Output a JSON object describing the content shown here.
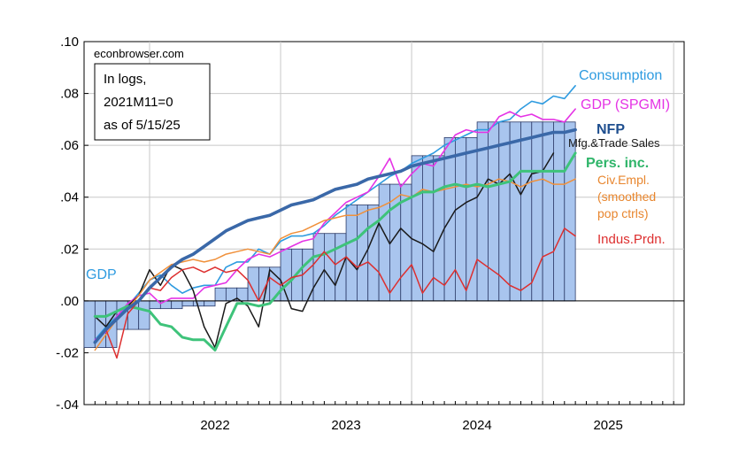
{
  "chart_data": {
    "type": "line",
    "source_credit": "econbrowser.com",
    "note_lines": [
      "In logs,",
      "2021M11=0",
      "as of 5/15/25"
    ],
    "x_tick_labels": [
      "2022",
      "2023",
      "2024",
      "2025"
    ],
    "x_range": [
      2021.5,
      2026.08
    ],
    "ylim": [
      -0.04,
      0.1
    ],
    "y_ticks": [
      -0.04,
      -0.02,
      0.0,
      0.02,
      0.04,
      0.06,
      0.08,
      0.1
    ],
    "y_tick_labels": [
      "-.04",
      "-.02",
      ".00",
      ".02",
      ".04",
      ".06",
      ".08",
      ".10"
    ],
    "grid": true,
    "bars": {
      "name": "GDP",
      "color": "#a9c5ee",
      "edge_color": "#2b3a67",
      "x": [
        2021.625,
        2021.875,
        2022.125,
        2022.375,
        2022.625,
        2022.875,
        2023.125,
        2023.375,
        2023.625,
        2023.875,
        2024.125,
        2024.375,
        2024.625,
        2024.875,
        2025.125
      ],
      "values": [
        -0.018,
        -0.011,
        -0.003,
        -0.002,
        0.005,
        0.013,
        0.02,
        0.026,
        0.037,
        0.045,
        0.056,
        0.063,
        0.069,
        0.069,
        0.069
      ]
    },
    "series": [
      {
        "name": "Consumption",
        "color": "#2e9be0",
        "width": 1.6,
        "x": [
          2021.583,
          2021.667,
          2021.75,
          2021.833,
          2021.917,
          2022.0,
          2022.083,
          2022.167,
          2022.25,
          2022.333,
          2022.417,
          2022.5,
          2022.583,
          2022.667,
          2022.75,
          2022.833,
          2022.917,
          2023.0,
          2023.083,
          2023.167,
          2023.25,
          2023.333,
          2023.417,
          2023.5,
          2023.583,
          2023.667,
          2023.75,
          2023.833,
          2023.917,
          2024.0,
          2024.083,
          2024.167,
          2024.25,
          2024.333,
          2024.417,
          2024.5,
          2024.583,
          2024.667,
          2024.75,
          2024.833,
          2024.917,
          2025.0,
          2025.083,
          2025.167,
          2025.25
        ],
        "values": [
          -0.015,
          -0.01,
          -0.006,
          -0.002,
          0.003,
          0.008,
          0.01,
          0.006,
          0.003,
          0.005,
          0.006,
          0.006,
          0.013,
          0.015,
          0.015,
          0.02,
          0.018,
          0.023,
          0.025,
          0.025,
          0.026,
          0.029,
          0.033,
          0.036,
          0.039,
          0.042,
          0.045,
          0.048,
          0.05,
          0.053,
          0.055,
          0.057,
          0.06,
          0.062,
          0.064,
          0.066,
          0.066,
          0.069,
          0.07,
          0.074,
          0.077,
          0.076,
          0.079,
          0.078,
          0.083
        ]
      },
      {
        "name": "GDP (SPGMI)",
        "color": "#e533e5",
        "width": 1.6,
        "x": [
          2021.583,
          2021.667,
          2021.75,
          2021.833,
          2021.917,
          2022.0,
          2022.083,
          2022.167,
          2022.25,
          2022.333,
          2022.417,
          2022.5,
          2022.583,
          2022.667,
          2022.75,
          2022.833,
          2022.917,
          2023.0,
          2023.083,
          2023.167,
          2023.25,
          2023.333,
          2023.417,
          2023.5,
          2023.583,
          2023.667,
          2023.75,
          2023.833,
          2023.917,
          2024.0,
          2024.083,
          2024.167,
          2024.25,
          2024.333,
          2024.417,
          2024.5,
          2024.583,
          2024.667,
          2024.75,
          2024.833,
          2024.917,
          2025.0,
          2025.083,
          2025.167,
          2025.25
        ],
        "values": [
          -0.015,
          -0.012,
          -0.006,
          -0.001,
          0.002,
          0.003,
          -0.001,
          0.001,
          0.001,
          0.001,
          0.005,
          0.006,
          0.007,
          0.012,
          0.016,
          0.018,
          0.017,
          0.019,
          0.021,
          0.023,
          0.024,
          0.03,
          0.034,
          0.038,
          0.04,
          0.042,
          0.048,
          0.055,
          0.044,
          0.049,
          0.053,
          0.052,
          0.058,
          0.064,
          0.066,
          0.065,
          0.065,
          0.071,
          0.073,
          0.071,
          0.072,
          0.07,
          0.07,
          0.069,
          0.074
        ]
      },
      {
        "name": "Mfg.&Trade Sales",
        "color": "#1a1a1a",
        "width": 1.5,
        "x": [
          2021.583,
          2021.667,
          2021.75,
          2021.833,
          2021.917,
          2022.0,
          2022.083,
          2022.167,
          2022.25,
          2022.333,
          2022.417,
          2022.5,
          2022.583,
          2022.667,
          2022.75,
          2022.833,
          2022.917,
          2023.0,
          2023.083,
          2023.167,
          2023.25,
          2023.333,
          2023.417,
          2023.5,
          2023.583,
          2023.667,
          2023.75,
          2023.833,
          2023.917,
          2024.0,
          2024.083,
          2024.167,
          2024.25,
          2024.333,
          2024.417,
          2024.5,
          2024.583,
          2024.667,
          2024.75,
          2024.833,
          2024.917,
          2025.0,
          2025.083
        ],
        "values": [
          -0.006,
          -0.01,
          -0.004,
          -0.002,
          0.002,
          0.012,
          0.006,
          0.014,
          0.012,
          0.004,
          -0.01,
          -0.018,
          -0.001,
          0.001,
          -0.002,
          -0.01,
          0.012,
          0.008,
          -0.003,
          -0.004,
          0.005,
          0.012,
          0.006,
          0.017,
          0.012,
          0.02,
          0.03,
          0.022,
          0.028,
          0.024,
          0.022,
          0.019,
          0.028,
          0.035,
          0.038,
          0.04,
          0.047,
          0.045,
          0.049,
          0.041,
          0.049,
          0.05,
          0.057
        ]
      },
      {
        "name": "Civ.Empl. (smoothed pop ctrls)",
        "color": "#f0903a",
        "width": 1.5,
        "x": [
          2021.583,
          2021.667,
          2021.75,
          2021.833,
          2021.917,
          2022.0,
          2022.083,
          2022.167,
          2022.25,
          2022.333,
          2022.417,
          2022.5,
          2022.583,
          2022.667,
          2022.75,
          2022.833,
          2022.917,
          2023.0,
          2023.083,
          2023.167,
          2023.25,
          2023.333,
          2023.417,
          2023.5,
          2023.583,
          2023.667,
          2023.75,
          2023.833,
          2023.917,
          2024.0,
          2024.083,
          2024.167,
          2024.25,
          2024.333,
          2024.417,
          2024.5,
          2024.583,
          2024.667,
          2024.75,
          2024.833,
          2024.917,
          2025.0,
          2025.083,
          2025.167,
          2025.25
        ],
        "values": [
          -0.019,
          -0.013,
          -0.007,
          -0.003,
          0.002,
          0.008,
          0.011,
          0.014,
          0.015,
          0.016,
          0.015,
          0.016,
          0.018,
          0.019,
          0.02,
          0.019,
          0.018,
          0.024,
          0.026,
          0.027,
          0.029,
          0.031,
          0.032,
          0.033,
          0.033,
          0.035,
          0.036,
          0.038,
          0.041,
          0.04,
          0.043,
          0.042,
          0.043,
          0.044,
          0.045,
          0.044,
          0.045,
          0.047,
          0.046,
          0.044,
          0.046,
          0.047,
          0.045,
          0.045,
          0.047
        ]
      },
      {
        "name": "Pers. inc.",
        "color": "#3ec37a",
        "width": 3.0,
        "x": [
          2021.583,
          2021.667,
          2021.75,
          2021.833,
          2021.917,
          2022.0,
          2022.083,
          2022.167,
          2022.25,
          2022.333,
          2022.417,
          2022.5,
          2022.583,
          2022.667,
          2022.75,
          2022.833,
          2022.917,
          2023.0,
          2023.083,
          2023.167,
          2023.25,
          2023.333,
          2023.417,
          2023.5,
          2023.583,
          2023.667,
          2023.75,
          2023.833,
          2023.917,
          2024.0,
          2024.083,
          2024.167,
          2024.25,
          2024.333,
          2024.417,
          2024.5,
          2024.583,
          2024.667,
          2024.75,
          2024.833,
          2024.917,
          2025.0,
          2025.083,
          2025.167,
          2025.25
        ],
        "values": [
          -0.006,
          -0.006,
          -0.004,
          -0.002,
          -0.003,
          -0.004,
          -0.009,
          -0.01,
          -0.014,
          -0.015,
          -0.015,
          -0.019,
          -0.01,
          -0.001,
          -0.001,
          -0.002,
          -0.001,
          0.004,
          0.008,
          0.013,
          0.017,
          0.018,
          0.02,
          0.022,
          0.024,
          0.028,
          0.031,
          0.035,
          0.038,
          0.04,
          0.042,
          0.042,
          0.044,
          0.045,
          0.044,
          0.045,
          0.044,
          0.045,
          0.046,
          0.05,
          0.05,
          0.05,
          0.05,
          0.05,
          0.057
        ]
      },
      {
        "name": "Indus.Prdn.",
        "color": "#dd2f2f",
        "width": 1.5,
        "x": [
          2021.583,
          2021.667,
          2021.75,
          2021.833,
          2021.917,
          2022.0,
          2022.083,
          2022.167,
          2022.25,
          2022.333,
          2022.417,
          2022.5,
          2022.583,
          2022.667,
          2022.75,
          2022.833,
          2022.917,
          2023.0,
          2023.083,
          2023.167,
          2023.25,
          2023.333,
          2023.417,
          2023.5,
          2023.583,
          2023.667,
          2023.75,
          2023.833,
          2023.917,
          2024.0,
          2024.083,
          2024.167,
          2024.25,
          2024.333,
          2024.417,
          2024.5,
          2024.583,
          2024.667,
          2024.75,
          2024.833,
          2024.917,
          2025.0,
          2025.083,
          2025.167,
          2025.25
        ],
        "values": [
          -0.016,
          -0.011,
          -0.022,
          -0.005,
          0.0,
          0.005,
          0.004,
          0.009,
          0.012,
          0.013,
          0.011,
          0.013,
          0.011,
          0.012,
          0.008,
          0.0,
          0.009,
          0.006,
          0.009,
          0.01,
          0.014,
          0.019,
          0.014,
          0.017,
          0.013,
          0.015,
          0.011,
          0.003,
          0.009,
          0.014,
          0.003,
          0.009,
          0.006,
          0.012,
          0.004,
          0.016,
          0.013,
          0.01,
          0.006,
          0.004,
          0.007,
          0.017,
          0.019,
          0.028,
          0.025
        ]
      },
      {
        "name": "NFP",
        "color": "#3a68a8",
        "width": 3.6,
        "x": [
          2021.583,
          2021.667,
          2021.75,
          2021.833,
          2021.917,
          2022.0,
          2022.083,
          2022.167,
          2022.25,
          2022.333,
          2022.417,
          2022.5,
          2022.583,
          2022.667,
          2022.75,
          2022.833,
          2022.917,
          2023.0,
          2023.083,
          2023.167,
          2023.25,
          2023.333,
          2023.417,
          2023.5,
          2023.583,
          2023.667,
          2023.75,
          2023.833,
          2023.917,
          2024.0,
          2024.083,
          2024.167,
          2024.25,
          2024.333,
          2024.417,
          2024.5,
          2024.583,
          2024.667,
          2024.75,
          2024.833,
          2024.917,
          2025.0,
          2025.083,
          2025.167,
          2025.25
        ],
        "values": [
          -0.016,
          -0.011,
          -0.007,
          -0.003,
          0.0,
          0.005,
          0.009,
          0.013,
          0.016,
          0.018,
          0.021,
          0.024,
          0.027,
          0.029,
          0.031,
          0.032,
          0.033,
          0.035,
          0.037,
          0.038,
          0.039,
          0.041,
          0.043,
          0.044,
          0.045,
          0.047,
          0.048,
          0.049,
          0.05,
          0.052,
          0.053,
          0.054,
          0.055,
          0.056,
          0.057,
          0.058,
          0.059,
          0.06,
          0.061,
          0.062,
          0.063,
          0.064,
          0.065,
          0.065,
          0.066
        ]
      }
    ],
    "labels": {
      "gdp": "GDP",
      "consumption": "Consumption",
      "gdp_spgmi": "GDP (SPGMI)",
      "nfp": "NFP",
      "mfg": "Mfg.&Trade Sales",
      "pers_inc": "Pers. inc.",
      "civ_empl": [
        "Civ.Empl.",
        "(smoothed",
        "pop ctrls)"
      ],
      "indus": "Indus.Prdn."
    },
    "label_colors": {
      "gdp": "#2e9be0",
      "consumption": "#2e9be0",
      "gdp_spgmi": "#e533e5",
      "nfp": "#1f4f8f",
      "mfg": "#1a1a1a",
      "pers_inc": "#2fb56a",
      "civ_empl": "#e8862e",
      "indus": "#dd2f2f"
    }
  }
}
